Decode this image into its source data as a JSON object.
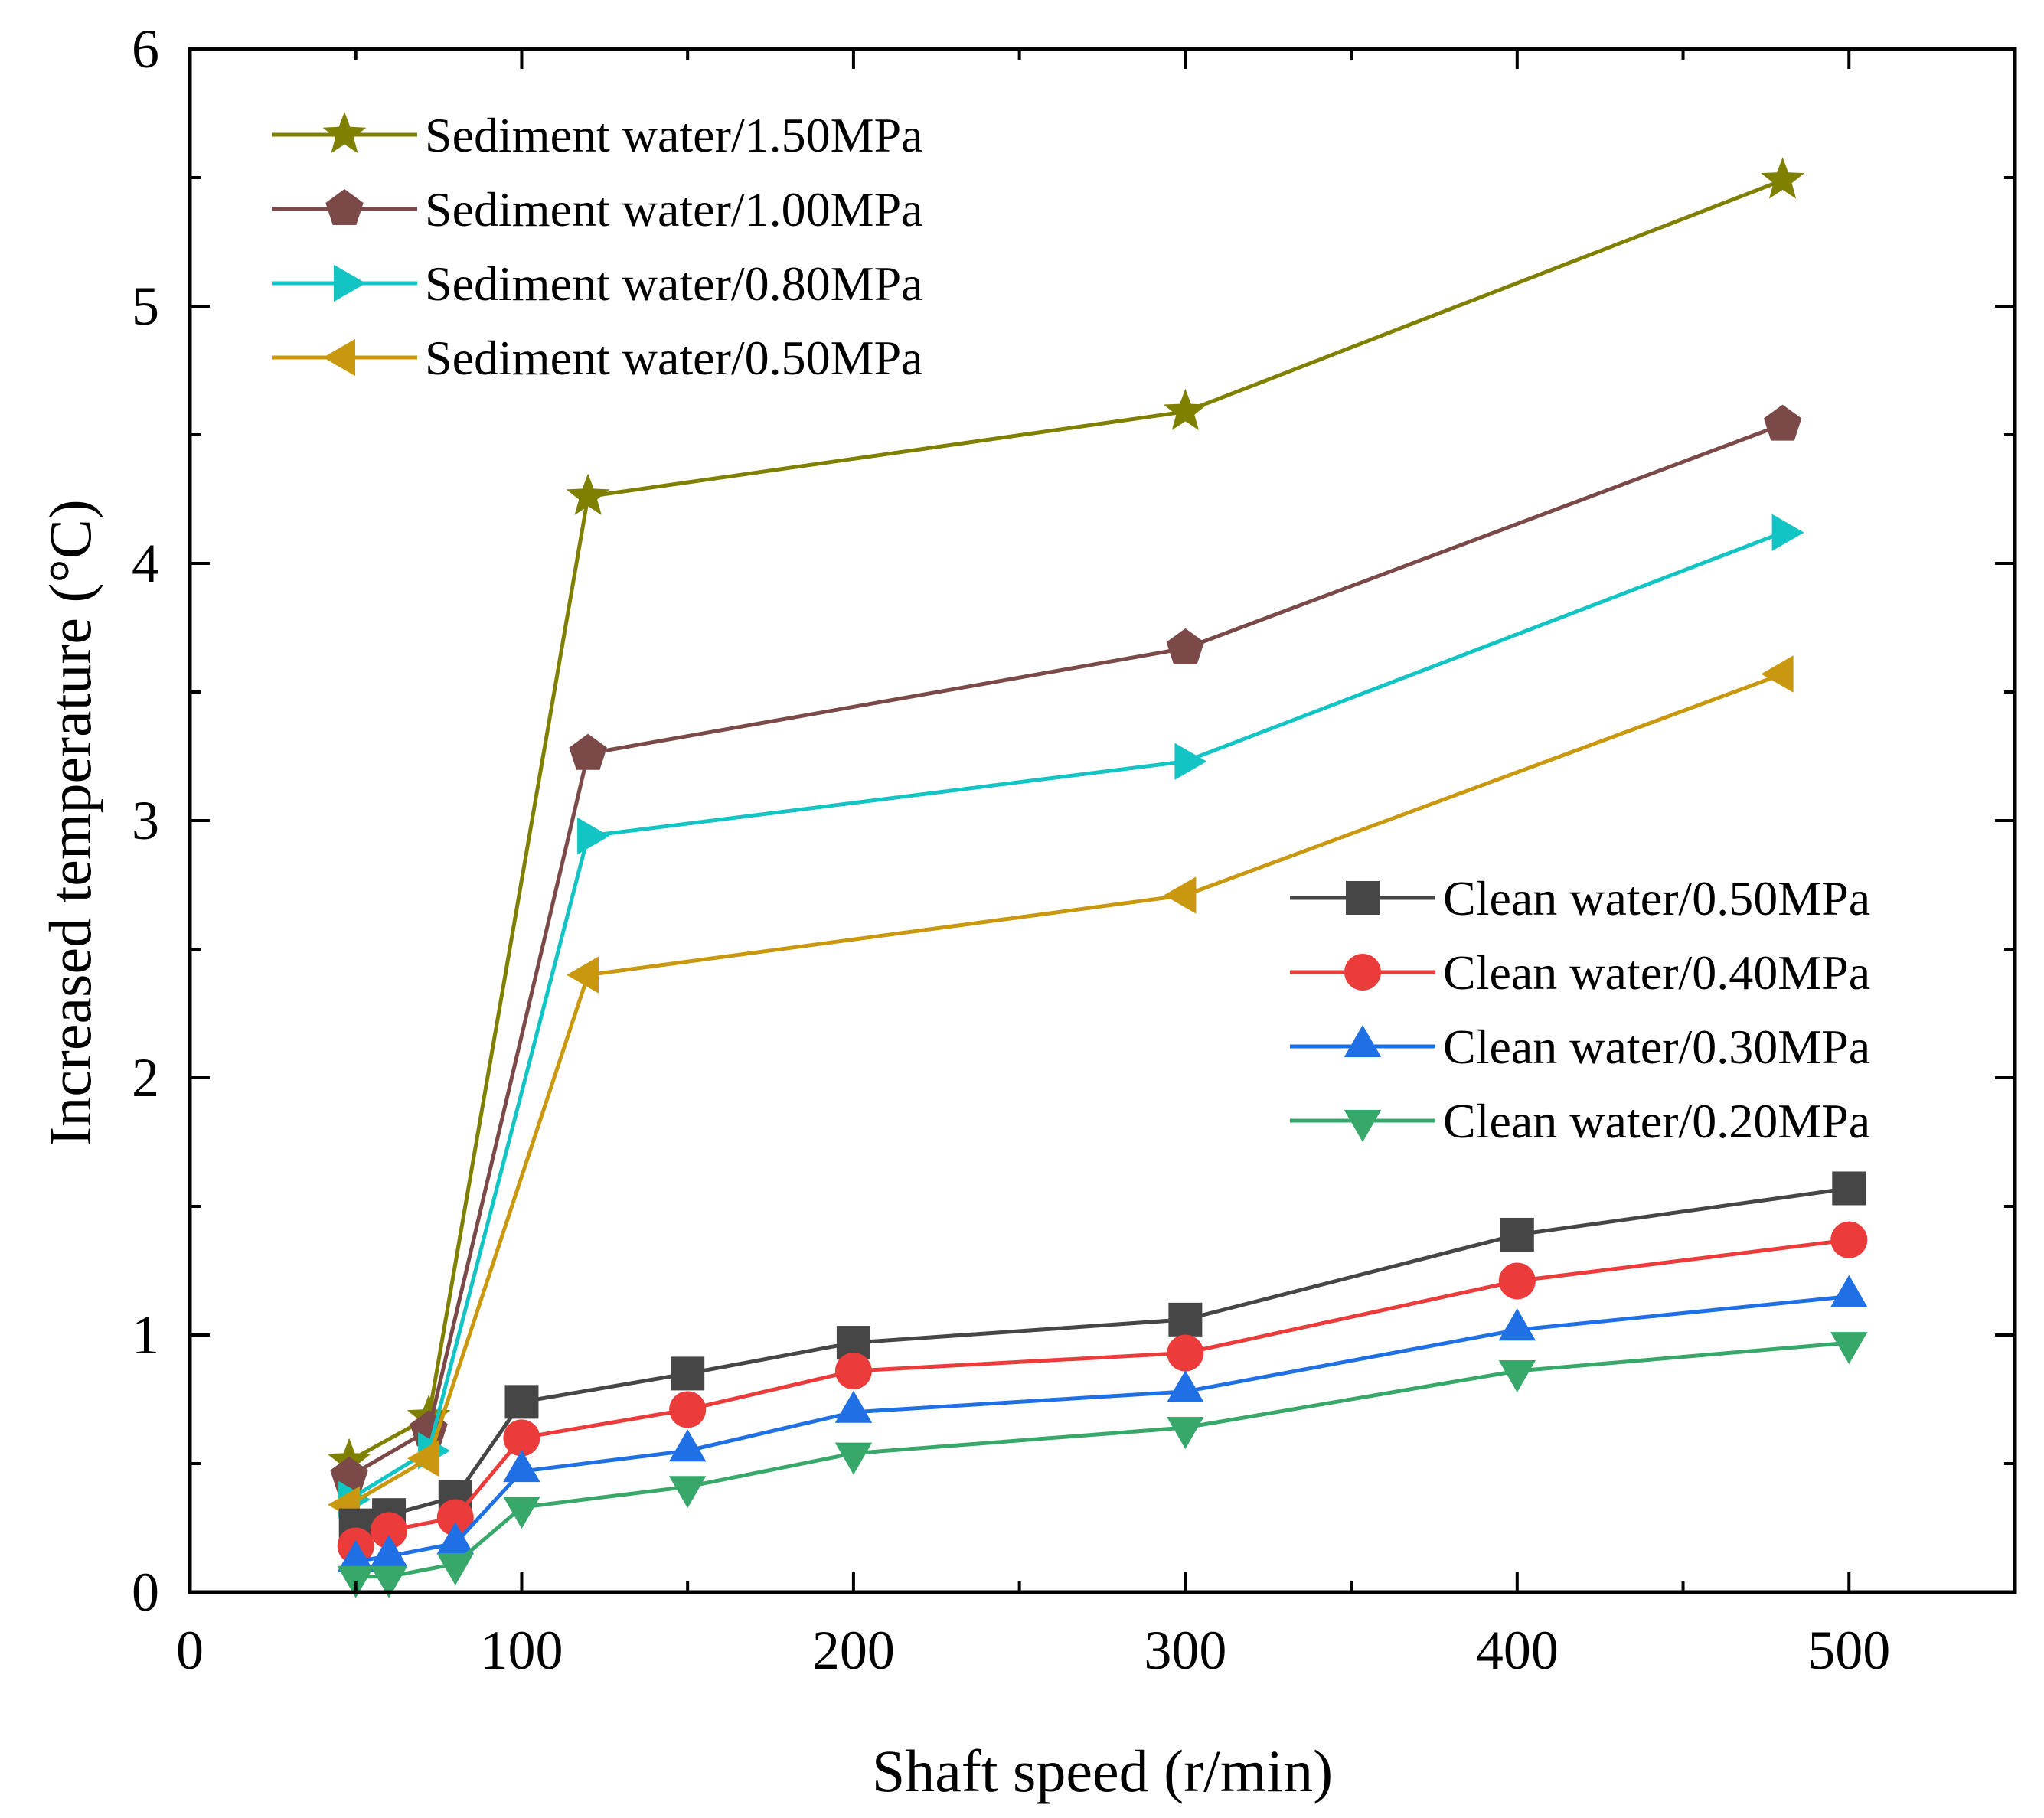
{
  "chart_data": {
    "type": "line",
    "title": "",
    "xlabel": "Shaft speed (r/min)",
    "ylabel": "Increased temperature (°C)",
    "xlim": [
      0,
      550
    ],
    "ylim": [
      0,
      6
    ],
    "xticks": [
      0,
      100,
      200,
      300,
      400,
      500
    ],
    "xtick_labels": [
      "0",
      "100",
      "200",
      "300",
      "400",
      "500"
    ],
    "yticks": [
      0,
      1,
      2,
      3,
      4,
      5,
      6
    ],
    "ytick_labels": [
      "0",
      "1",
      "2",
      "3",
      "4",
      "5",
      "6"
    ],
    "grid": false,
    "legend_groups": [
      {
        "placement": "top-left",
        "series": [
          0,
          1,
          2,
          3
        ]
      },
      {
        "placement": "center-right",
        "series": [
          4,
          5,
          6,
          7
        ]
      }
    ],
    "series": [
      {
        "name": "Sediment water/1.50MPa",
        "color": "#808000",
        "marker": "star",
        "x": [
          48,
          72,
          120,
          300,
          480
        ],
        "y": [
          0.51,
          0.68,
          4.26,
          4.59,
          5.49
        ]
      },
      {
        "name": "Sediment water/1.00MPa",
        "color": "#7B4A48",
        "marker": "pentagon",
        "x": [
          48,
          72,
          120,
          300,
          480
        ],
        "y": [
          0.45,
          0.63,
          3.26,
          3.67,
          4.54
        ]
      },
      {
        "name": "Sediment water/0.80MPa",
        "color": "#13C4C4",
        "marker": "triangle-right",
        "x": [
          48,
          72,
          120,
          300,
          480
        ],
        "y": [
          0.36,
          0.55,
          2.94,
          3.23,
          4.12
        ]
      },
      {
        "name": "Sediment water/0.50MPa",
        "color": "#C9980E",
        "marker": "triangle-left",
        "x": [
          48,
          72,
          120,
          300,
          480
        ],
        "y": [
          0.34,
          0.52,
          2.4,
          2.71,
          3.57
        ]
      },
      {
        "name": "Clean water/0.50MPa",
        "color": "#464646",
        "marker": "square",
        "x": [
          50,
          60,
          80,
          100,
          150,
          200,
          300,
          400,
          500
        ],
        "y": [
          0.26,
          0.3,
          0.37,
          0.74,
          0.85,
          0.97,
          1.06,
          1.39,
          1.57
        ]
      },
      {
        "name": "Clean water/0.40MPa",
        "color": "#EB3B3B",
        "marker": "circle",
        "x": [
          50,
          60,
          80,
          100,
          150,
          200,
          300,
          400,
          500
        ],
        "y": [
          0.18,
          0.24,
          0.29,
          0.6,
          0.71,
          0.86,
          0.93,
          1.21,
          1.37
        ]
      },
      {
        "name": "Clean water/0.30MPa",
        "color": "#1F6FE5",
        "marker": "triangle-up",
        "x": [
          50,
          60,
          80,
          100,
          150,
          200,
          300,
          400,
          500
        ],
        "y": [
          0.12,
          0.14,
          0.19,
          0.47,
          0.55,
          0.7,
          0.78,
          1.02,
          1.15
        ]
      },
      {
        "name": "Clean water/0.20MPa",
        "color": "#38A86A",
        "marker": "triangle-down",
        "x": [
          50,
          60,
          80,
          100,
          150,
          200,
          300,
          400,
          500
        ],
        "y": [
          0.06,
          0.06,
          0.11,
          0.33,
          0.41,
          0.54,
          0.64,
          0.86,
          0.97
        ]
      }
    ]
  }
}
